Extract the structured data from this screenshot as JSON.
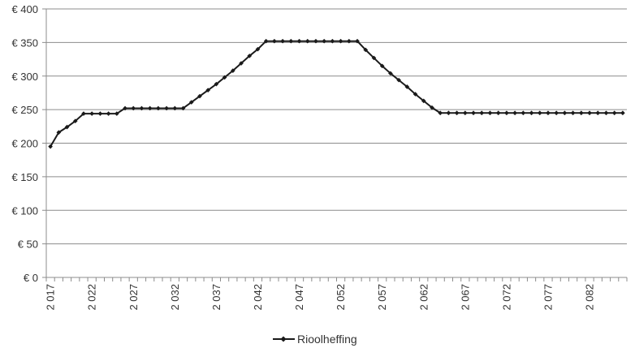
{
  "chart_data": {
    "type": "line",
    "title": "",
    "xlabel": "",
    "ylabel": "",
    "ylim": [
      0,
      400
    ],
    "ytick_values": [
      0,
      50,
      100,
      150,
      200,
      250,
      300,
      350,
      400
    ],
    "ytick_labels": [
      "€ 0",
      "€ 50",
      "€ 100",
      "€ 150",
      "€ 200",
      "€ 250",
      "€ 300",
      "€ 350",
      "€ 400"
    ],
    "xtick_labels": [
      "2 017",
      "2 022",
      "2 027",
      "2 032",
      "2 037",
      "2 042",
      "2 047",
      "2 052",
      "2 057",
      "2 062",
      "2 067",
      "2 072",
      "2 077",
      "2 082"
    ],
    "x_start": 2017,
    "x_end": 2086,
    "grid": "horizontal",
    "legend_position": "bottom",
    "colors": {
      "line": "#1a1a1a",
      "grid": "#8c8c8c",
      "axis": "#8c8c8c"
    },
    "series": [
      {
        "name": "Rioolheffing",
        "values": [
          195,
          216,
          224,
          233,
          244,
          244,
          244,
          244,
          244,
          252,
          252,
          252,
          252,
          252,
          252,
          252,
          252,
          261,
          270,
          279,
          288,
          298,
          308,
          319,
          330,
          340,
          352,
          352,
          352,
          352,
          352,
          352,
          352,
          352,
          352,
          352,
          352,
          352,
          339,
          327,
          315,
          304,
          294,
          284,
          273,
          263,
          253,
          245,
          245,
          245,
          245,
          245,
          245,
          245,
          245,
          245,
          245,
          245,
          245,
          245,
          245,
          245,
          245,
          245,
          245,
          245,
          245,
          245,
          245,
          245
        ]
      }
    ]
  }
}
